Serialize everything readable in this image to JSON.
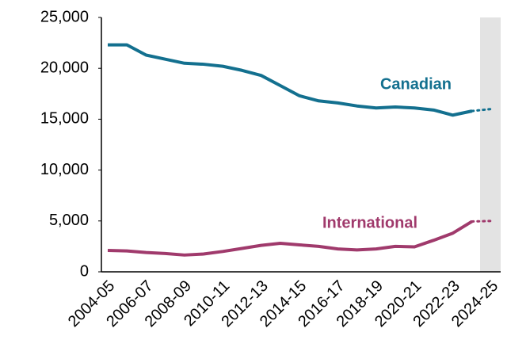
{
  "chart_data": {
    "type": "line",
    "categories": [
      "2004-05",
      null,
      "2006-07",
      null,
      "2008-09",
      null,
      "2010-11",
      null,
      "2012-13",
      null,
      "2014-15",
      null,
      "2016-17",
      null,
      "2018-19",
      null,
      "2020-21",
      null,
      "2022-23",
      null,
      "2024-25"
    ],
    "series": [
      {
        "name": "Canadian",
        "color": "#13708f",
        "values": [
          22300,
          22300,
          21300,
          20900,
          20500,
          20400,
          20200,
          19800,
          19300,
          18300,
          17300,
          16800,
          16600,
          16300,
          16100,
          16200,
          16100,
          15900,
          15400,
          15800,
          16000
        ]
      },
      {
        "name": "International",
        "color": "#a03a6c",
        "values": [
          2100,
          2050,
          1900,
          1800,
          1650,
          1750,
          2000,
          2300,
          2600,
          2800,
          2650,
          2500,
          2250,
          2150,
          2250,
          2500,
          2450,
          3100,
          3800,
          4950,
          5000
        ]
      }
    ],
    "projected_category": 20,
    "ylim": [
      0,
      25000
    ],
    "yticks": [
      {
        "value": 0,
        "label": "0"
      },
      {
        "value": 5000,
        "label": "5,000"
      },
      {
        "value": 10000,
        "label": "10,000"
      },
      {
        "value": 15000,
        "label": "15,000"
      },
      {
        "value": 20000,
        "label": "20,000"
      },
      {
        "value": 25000,
        "label": "25,000"
      }
    ]
  }
}
